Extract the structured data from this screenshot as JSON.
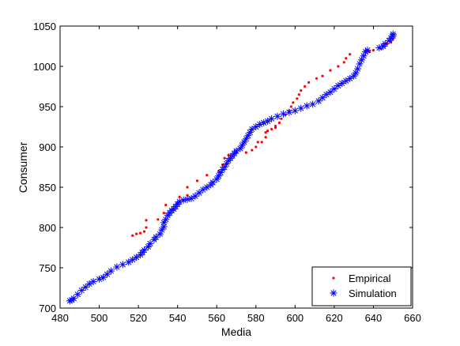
{
  "chart_data": {
    "type": "scatter",
    "title": "",
    "xlabel": "Media",
    "ylabel": "Consumer",
    "xlim": [
      480,
      660
    ],
    "ylim": [
      700,
      1050
    ],
    "xticks": [
      480,
      500,
      520,
      540,
      560,
      580,
      600,
      620,
      640,
      660
    ],
    "yticks": [
      700,
      750,
      800,
      850,
      900,
      950,
      1000,
      1050
    ],
    "grid": false,
    "legend_position": "bottom-right",
    "series": [
      {
        "name": "Empirical",
        "marker": "dot",
        "color": "#ff0000",
        "points": [
          [
            517,
            790
          ],
          [
            519,
            792
          ],
          [
            521,
            793
          ],
          [
            523,
            795
          ],
          [
            524,
            800
          ],
          [
            524,
            809
          ],
          [
            530,
            810
          ],
          [
            533,
            818
          ],
          [
            534,
            828
          ],
          [
            540,
            830
          ],
          [
            541,
            838
          ],
          [
            545,
            840
          ],
          [
            545,
            850
          ],
          [
            550,
            858
          ],
          [
            555,
            865
          ],
          [
            561,
            870
          ],
          [
            563,
            878
          ],
          [
            564,
            886
          ],
          [
            566,
            890
          ],
          [
            570,
            893
          ],
          [
            575,
            893
          ],
          [
            578,
            896
          ],
          [
            580,
            900
          ],
          [
            581,
            906
          ],
          [
            583,
            906
          ],
          [
            585,
            912
          ],
          [
            585,
            918
          ],
          [
            586,
            920
          ],
          [
            588,
            922
          ],
          [
            590,
            924
          ],
          [
            590,
            926
          ],
          [
            592,
            930
          ],
          [
            593,
            935
          ],
          [
            595,
            940
          ],
          [
            597,
            945
          ],
          [
            598,
            950
          ],
          [
            599,
            955
          ],
          [
            601,
            960
          ],
          [
            602,
            965
          ],
          [
            603,
            970
          ],
          [
            605,
            975
          ],
          [
            607,
            980
          ],
          [
            611,
            985
          ],
          [
            614,
            988
          ],
          [
            618,
            995
          ],
          [
            622,
            1000
          ],
          [
            625,
            1005
          ],
          [
            626,
            1010
          ],
          [
            628,
            1015
          ],
          [
            638,
            1018
          ],
          [
            640,
            1020
          ],
          [
            644,
            1022
          ],
          [
            645,
            1025
          ],
          [
            647,
            1028
          ],
          [
            649,
            1030
          ],
          [
            650,
            1034
          ]
        ]
      },
      {
        "name": "Simulation",
        "marker": "star",
        "color": "#0000ff",
        "points": [
          [
            485,
            709
          ],
          [
            486,
            710
          ],
          [
            487,
            712
          ],
          [
            489,
            717
          ],
          [
            491,
            722
          ],
          [
            493,
            726
          ],
          [
            495,
            730
          ],
          [
            497,
            733
          ],
          [
            500,
            736
          ],
          [
            502,
            738
          ],
          [
            504,
            742
          ],
          [
            506,
            746
          ],
          [
            509,
            751
          ],
          [
            512,
            754
          ],
          [
            515,
            757
          ],
          [
            517,
            760
          ],
          [
            519,
            763
          ],
          [
            521,
            766
          ],
          [
            522,
            769
          ],
          [
            523,
            772
          ],
          [
            525,
            776
          ],
          [
            526,
            780
          ],
          [
            528,
            785
          ],
          [
            529,
            788
          ],
          [
            531,
            792
          ],
          [
            532,
            797
          ],
          [
            533,
            801
          ],
          [
            533,
            806
          ],
          [
            534,
            810
          ],
          [
            535,
            815
          ],
          [
            536,
            818
          ],
          [
            537,
            821
          ],
          [
            538,
            823
          ],
          [
            539,
            826
          ],
          [
            540,
            829
          ],
          [
            541,
            832
          ],
          [
            543,
            834
          ],
          [
            545,
            835
          ],
          [
            547,
            836
          ],
          [
            549,
            839
          ],
          [
            551,
            843
          ],
          [
            553,
            847
          ],
          [
            555,
            850
          ],
          [
            557,
            853
          ],
          [
            558,
            856
          ],
          [
            560,
            860
          ],
          [
            561,
            864
          ],
          [
            562,
            868
          ],
          [
            563,
            872
          ],
          [
            564,
            875
          ],
          [
            565,
            879
          ],
          [
            566,
            883
          ],
          [
            567,
            886
          ],
          [
            568,
            889
          ],
          [
            569,
            892
          ],
          [
            570,
            895
          ],
          [
            572,
            898
          ],
          [
            573,
            902
          ],
          [
            574,
            906
          ],
          [
            575,
            910
          ],
          [
            576,
            914
          ],
          [
            577,
            918
          ],
          [
            578,
            922
          ],
          [
            580,
            925
          ],
          [
            582,
            928
          ],
          [
            584,
            930
          ],
          [
            586,
            932
          ],
          [
            588,
            935
          ],
          [
            591,
            938
          ],
          [
            594,
            941
          ],
          [
            597,
            943
          ],
          [
            600,
            945
          ],
          [
            603,
            948
          ],
          [
            606,
            951
          ],
          [
            609,
            953
          ],
          [
            612,
            957
          ],
          [
            614,
            961
          ],
          [
            616,
            965
          ],
          [
            618,
            968
          ],
          [
            620,
            972
          ],
          [
            622,
            976
          ],
          [
            624,
            979
          ],
          [
            626,
            982
          ],
          [
            628,
            985
          ],
          [
            630,
            988
          ],
          [
            631,
            992
          ],
          [
            632,
            997
          ],
          [
            633,
            1003
          ],
          [
            634,
            1008
          ],
          [
            635,
            1013
          ],
          [
            636,
            1018
          ],
          [
            637,
            1020
          ],
          [
            643,
            1023
          ],
          [
            645,
            1025
          ],
          [
            646,
            1028
          ],
          [
            648,
            1032
          ],
          [
            649,
            1035
          ],
          [
            650,
            1038
          ],
          [
            650,
            1040
          ]
        ]
      }
    ]
  }
}
